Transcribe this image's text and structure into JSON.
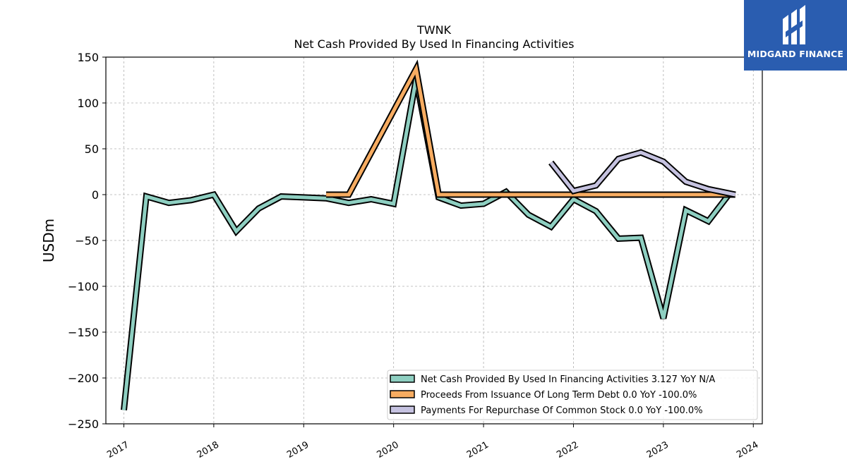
{
  "logo": {
    "name": "MIDGARD FINANCE",
    "icon": "midgard-logo-icon",
    "color": "#2a5db0"
  },
  "chart_data": {
    "type": "line",
    "title": "TWNK",
    "subtitle": "Net Cash Provided By Used In Financing Activities",
    "ylabel": "USDm",
    "xlabel": "",
    "ylim": [
      -250,
      150
    ],
    "xlim": [
      2016.8,
      2024.1
    ],
    "yticks": [
      150,
      100,
      50,
      0,
      -50,
      -100,
      -150,
      -200,
      -250
    ],
    "ytick_labels": [
      "150",
      "100",
      "50",
      "0",
      "−50",
      "−100",
      "−150",
      "−200",
      "−250"
    ],
    "xticks": [
      2017,
      2018,
      2019,
      2020,
      2021,
      2022,
      2023,
      2024
    ],
    "xtick_labels": [
      "2017",
      "2018",
      "2019",
      "2020",
      "2021",
      "2022",
      "2023",
      "2024"
    ],
    "grid": true,
    "legend_position": "bottom-right",
    "series": [
      {
        "name": "Net Cash Provided By Used In Financing Activities",
        "legend_label": "Net Cash Provided By Used In Financing Activities  3.127 YoY N/A",
        "color": "#8ecfc1",
        "x": [
          2017.0,
          2017.25,
          2017.5,
          2017.75,
          2018.0,
          2018.25,
          2018.5,
          2018.75,
          2019.0,
          2019.25,
          2019.5,
          2019.75,
          2020.0,
          2020.25,
          2020.5,
          2020.75,
          2021.0,
          2021.25,
          2021.5,
          2021.75,
          2022.0,
          2022.25,
          2022.5,
          2022.75,
          2023.0,
          2023.25,
          2023.5,
          2023.75
        ],
        "y": [
          -235,
          -2,
          -9,
          -6,
          0,
          -40,
          -15,
          -2,
          -3,
          -4,
          -9,
          -5,
          -10,
          126,
          -3,
          -12,
          -10,
          3,
          -22,
          -35,
          -5,
          -18,
          -48,
          -47,
          -135,
          -17,
          -29,
          3
        ]
      },
      {
        "name": "Proceeds From Issuance Of Long Term Debt",
        "legend_label": "Proceeds From Issuance Of Long Term Debt  0.0 YoY -100.0%",
        "color": "#f7ac61",
        "x": [
          2019.25,
          2019.5,
          2020.25,
          2020.5,
          2020.75,
          2021.0,
          2021.25,
          2021.5,
          2021.75,
          2022.0,
          2022.25,
          2022.5,
          2022.75,
          2023.0,
          2023.25,
          2023.5,
          2023.8
        ],
        "y": [
          0,
          0,
          137,
          0,
          0,
          0,
          0,
          0,
          0,
          0,
          0,
          0,
          0,
          0,
          0,
          0,
          0
        ]
      },
      {
        "name": "Payments For Repurchase Of Common Stock",
        "legend_label": "Payments For Repurchase Of Common Stock  0.0 YoY -100.0%",
        "color": "#c5c2e0",
        "x": [
          2021.75,
          2022.0,
          2022.25,
          2022.5,
          2022.75,
          2023.0,
          2023.25,
          2023.5,
          2023.8
        ],
        "y": [
          35,
          4,
          10,
          39,
          46,
          36,
          14,
          6,
          0
        ]
      }
    ]
  }
}
